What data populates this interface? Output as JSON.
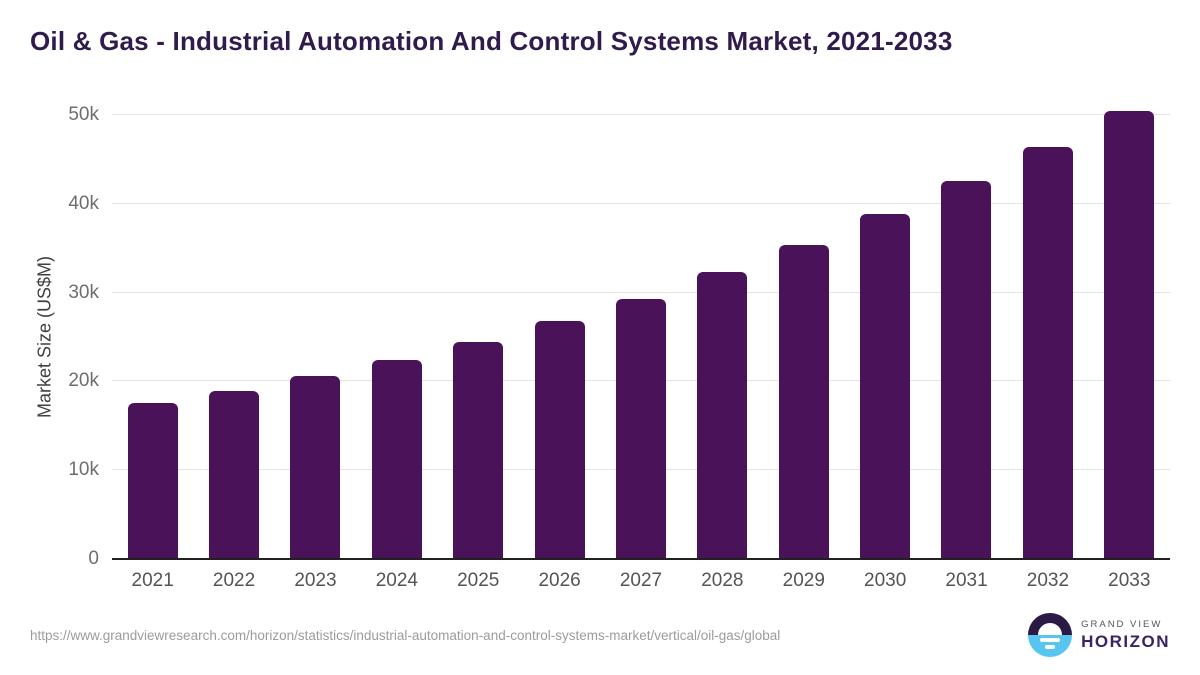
{
  "chart_data": {
    "type": "bar",
    "title": "Oil & Gas - Industrial Automation And Control Systems Market, 2021-2033",
    "xlabel": "",
    "ylabel": "Market Size (US$M)",
    "categories": [
      "2021",
      "2022",
      "2023",
      "2024",
      "2025",
      "2026",
      "2027",
      "2028",
      "2029",
      "2030",
      "2031",
      "2032",
      "2033"
    ],
    "values": [
      17600,
      18950,
      20650,
      22400,
      24400,
      26750,
      29250,
      32300,
      35400,
      38850,
      42600,
      46400,
      50400
    ],
    "ylim": [
      0,
      50000
    ],
    "yticks": [
      {
        "value": 0,
        "label": "0"
      },
      {
        "value": 10000,
        "label": "10k"
      },
      {
        "value": 20000,
        "label": "20k"
      },
      {
        "value": 30000,
        "label": "30k"
      },
      {
        "value": 40000,
        "label": "40k"
      },
      {
        "value": 50000,
        "label": "50k"
      }
    ],
    "grid": true,
    "legend": "none",
    "bar_color": "#4a1259"
  },
  "colors": {
    "title_text": "#2f1b4c",
    "bar": "#4a1259",
    "gridline": "#e4e4e4",
    "axis_line": "#212121",
    "logo_dark": "#2a1a45",
    "logo_blue": "#56c5f0"
  },
  "footer": {
    "source_url": "https://www.grandviewresearch.com/horizon/statistics/industrial-automation-and-control-systems-market/vertical/oil-gas/global",
    "logo": {
      "top_text": "GRAND VIEW",
      "bottom_text": "HORIZON"
    }
  }
}
